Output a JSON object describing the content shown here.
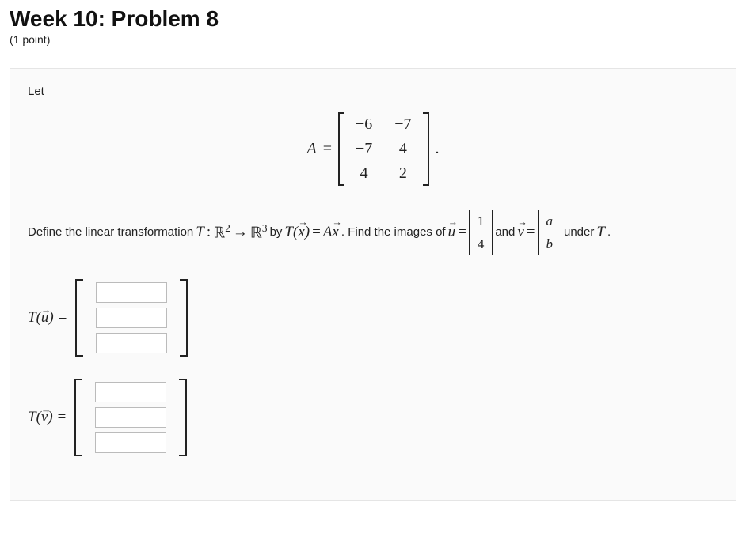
{
  "header": {
    "title": "Week 10: Problem 8",
    "points": "(1 point)"
  },
  "problem": {
    "let_label": "Let",
    "matrixA": {
      "lhs": "A",
      "eq": "=",
      "rows": [
        [
          "−6",
          "−7"
        ],
        [
          "−7",
          "4"
        ],
        [
          "4",
          "2"
        ]
      ],
      "period": "."
    },
    "prompt": {
      "t1": "Define the linear transformation ",
      "T": "T",
      "colon": " : ",
      "R": "ℝ",
      "sup2": "2",
      "arrow": " → ",
      "sup3": "3",
      "by": " by ",
      "Tx_open": "T(",
      "xvec": "x",
      "Tx_close": ")",
      "eq": " = ",
      "Ax_A": "A",
      "Ax_x": "x",
      "t2": ". Find the images of ",
      "uvec": "u",
      "eq2": " = ",
      "u_rows": [
        [
          "1"
        ],
        [
          "4"
        ]
      ],
      "and": " and ",
      "vvec": "v",
      "eq3": " = ",
      "v_rows": [
        [
          "a"
        ],
        [
          "b"
        ]
      ],
      "under": " under ",
      "T2": "T",
      "period": "."
    },
    "answers": {
      "Tu": {
        "label_T": "T(",
        "label_var": "u",
        "label_close": ") =",
        "inputs": 3
      },
      "Tv": {
        "label_T": "T(",
        "label_var": "v",
        "label_close": ") =",
        "inputs": 3
      }
    }
  }
}
